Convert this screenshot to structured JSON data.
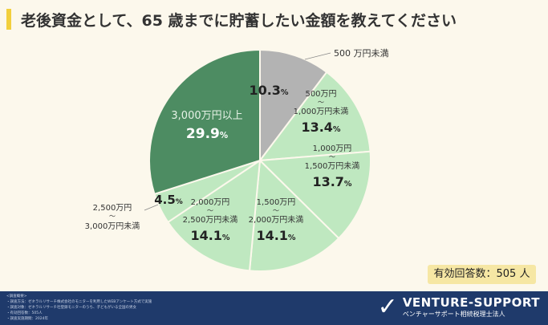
{
  "title": "老後資金として、65 歳までに貯蓄したい金額を教えてください",
  "respondents": "有効回答数：505 人",
  "footer": {
    "lines": [
      "<調査概要>",
      "・調査方法：ゼネラルリサーチ株式会社のモニターを利用したWEBアンケート方式で実施",
      "・調査対象：ゼネラルリサーチ社登録モニターのうち、子どもがいる全国の男女",
      "・有効回答数：505人",
      "・調査実施期間：2024年"
    ]
  },
  "logo": {
    "name": "VENTURE-SUPPORT",
    "sub": "ベンチャーサポート相続税理士法人"
  },
  "chart_data": {
    "type": "pie",
    "start": "top",
    "direction": "clockwise",
    "categories": [
      "500 万円未満",
      "500万円〜1,000万円未満",
      "1,000万円〜1,500万円未満",
      "1,500万円〜2,000万円未満",
      "2,000万円〜2,500万円未満",
      "2,500万円〜3,000万円未満",
      "3,000万円以上"
    ],
    "label_lines": [
      [
        "500 万円未満"
      ],
      [
        "500万円",
        "〜",
        "1,000万円未満"
      ],
      [
        "1,000万円",
        "〜",
        "1,500万円未満"
      ],
      [
        "1,500万円",
        "〜",
        "2,000万円未満"
      ],
      [
        "2,000万円",
        "〜",
        "2,500万円未満"
      ],
      [
        "2,500万円",
        "〜",
        "3,000万円未満"
      ],
      [
        "3,000万円以上"
      ]
    ],
    "values": [
      10.3,
      13.4,
      13.7,
      14.1,
      14.1,
      4.5,
      29.9
    ],
    "value_labels": [
      "10.3",
      "13.4",
      "13.7",
      "14.1",
      "14.1",
      "4.5",
      "29.9"
    ],
    "unit": "%",
    "colors": [
      "#b3b3b3",
      "#bfe8c0",
      "#bfe8c0",
      "#bfe8c0",
      "#bfe8c0",
      "#bfe8c0",
      "#4d8c62"
    ]
  }
}
